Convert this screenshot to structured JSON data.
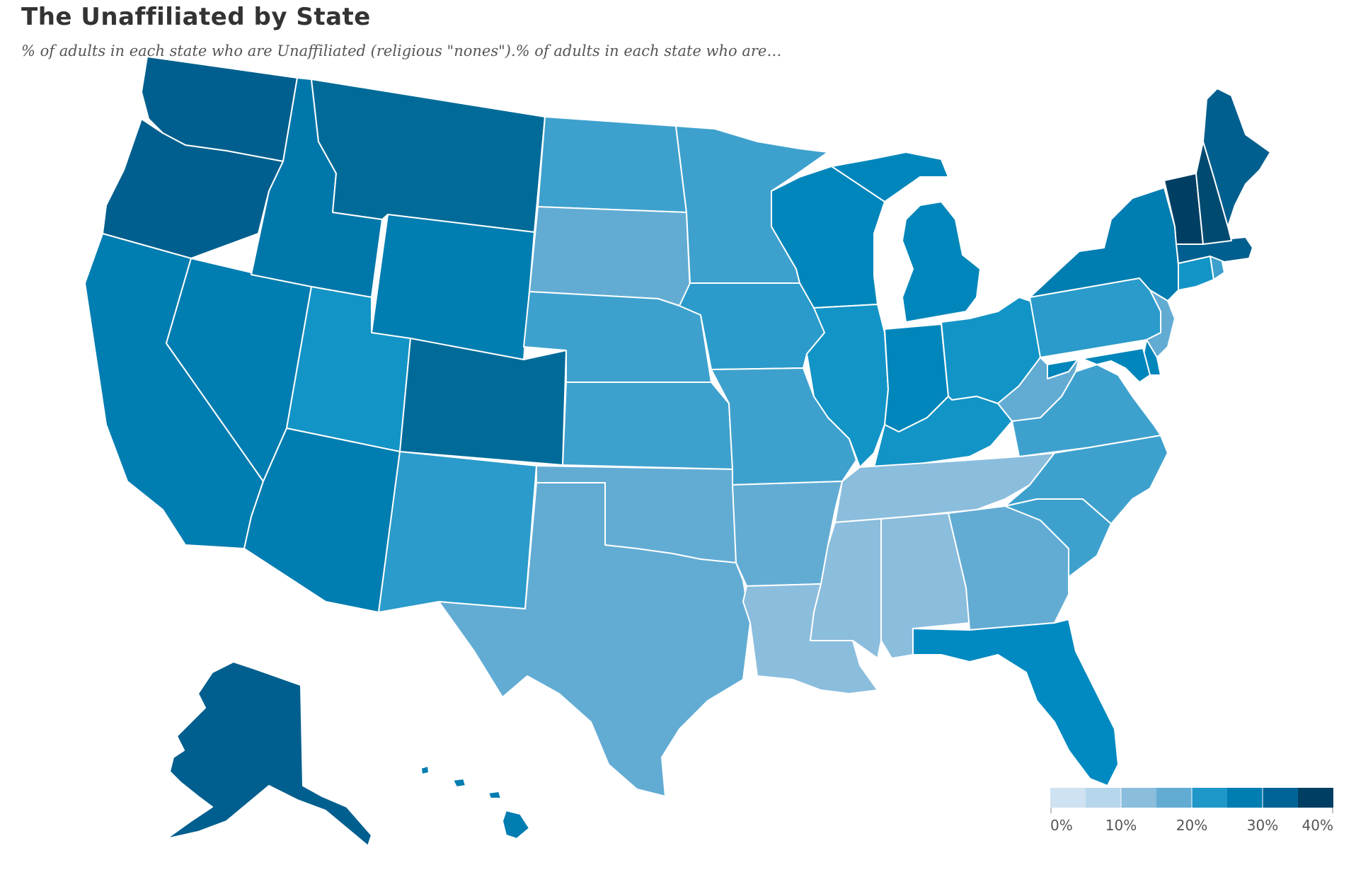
{
  "title": "The Unaffiliated by State",
  "subtitle": "% of adults in each state who are Unaffiliated (religious \"nones\").% of adults in each state who are…",
  "color_scale": [
    "#cfe2f1",
    "#a9d0ea",
    "#8bbddd",
    "#62acd4",
    "#3ea1cd",
    "#2a9bca",
    "#1394c6",
    "#008ac1",
    "#007db1",
    "#006a98",
    "#005a84",
    "#003f63"
  ],
  "legend": {
    "bins": [
      {
        "min": 0,
        "max": 5,
        "color": "#cfe2f1"
      },
      {
        "min": 5,
        "max": 10,
        "color": "#b6d6ec"
      },
      {
        "min": 10,
        "max": 15,
        "color": "#8bbddd"
      },
      {
        "min": 15,
        "max": 20,
        "color": "#62acd4"
      },
      {
        "min": 20,
        "max": 25,
        "color": "#1f97c8"
      },
      {
        "min": 25,
        "max": 30,
        "color": "#007db1"
      },
      {
        "min": 30,
        "max": 35,
        "color": "#006596"
      },
      {
        "min": 35,
        "max": 40,
        "color": "#003f63"
      }
    ],
    "ticks": [
      "0%",
      "10%",
      "20%",
      "30%",
      "40%"
    ]
  },
  "states": [
    {
      "name": "Washington",
      "color": "#005f8e"
    },
    {
      "name": "Oregon",
      "color": "#005f8e"
    },
    {
      "name": "California",
      "color": "#007db1"
    },
    {
      "name": "Nevada",
      "color": "#007db1"
    },
    {
      "name": "Idaho",
      "color": "#0077aa"
    },
    {
      "name": "Montana",
      "color": "#006b99"
    },
    {
      "name": "Wyoming",
      "color": "#007db1"
    },
    {
      "name": "Utah",
      "color": "#1394c6"
    },
    {
      "name": "Arizona",
      "color": "#007db1"
    },
    {
      "name": "Colorado",
      "color": "#006b99"
    },
    {
      "name": "New Mexico",
      "color": "#2a9bca"
    },
    {
      "name": "North Dakota",
      "color": "#3ea1cd"
    },
    {
      "name": "South Dakota",
      "color": "#62acd4"
    },
    {
      "name": "Nebraska",
      "color": "#3ea1cd"
    },
    {
      "name": "Kansas",
      "color": "#3ea1cd"
    },
    {
      "name": "Oklahoma",
      "color": "#62acd4"
    },
    {
      "name": "Texas",
      "color": "#62acd4"
    },
    {
      "name": "Minnesota",
      "color": "#3ea1cd"
    },
    {
      "name": "Iowa",
      "color": "#2a9bca"
    },
    {
      "name": "Missouri",
      "color": "#3ea1cd"
    },
    {
      "name": "Arkansas",
      "color": "#62acd4"
    },
    {
      "name": "Louisiana",
      "color": "#8bbddd"
    },
    {
      "name": "Wisconsin",
      "color": "#0086ba"
    },
    {
      "name": "Illinois",
      "color": "#1394c6"
    },
    {
      "name": "Michigan",
      "color": "#0086ba"
    },
    {
      "name": "Indiana",
      "color": "#0086ba"
    },
    {
      "name": "Ohio",
      "color": "#1394c6"
    },
    {
      "name": "Kentucky",
      "color": "#1394c6"
    },
    {
      "name": "Tennessee",
      "color": "#8bbddd"
    },
    {
      "name": "Mississippi",
      "color": "#8bbddd"
    },
    {
      "name": "Alabama",
      "color": "#8bbddd"
    },
    {
      "name": "Georgia",
      "color": "#62acd4"
    },
    {
      "name": "Florida",
      "color": "#008ac1"
    },
    {
      "name": "South Carolina",
      "color": "#3ea1cd"
    },
    {
      "name": "North Carolina",
      "color": "#3ea1cd"
    },
    {
      "name": "Virginia",
      "color": "#3ea1cd"
    },
    {
      "name": "West Virginia",
      "color": "#62acd4"
    },
    {
      "name": "Pennsylvania",
      "color": "#2a9bca"
    },
    {
      "name": "New York",
      "color": "#007db1"
    },
    {
      "name": "New Jersey",
      "color": "#62acd4"
    },
    {
      "name": "Delaware",
      "color": "#0086ba"
    },
    {
      "name": "Maryland",
      "color": "#0086ba"
    },
    {
      "name": "Connecticut",
      "color": "#1394c6"
    },
    {
      "name": "Rhode Island",
      "color": "#3ea1cd"
    },
    {
      "name": "Massachusetts",
      "color": "#005f8e"
    },
    {
      "name": "Vermont",
      "color": "#003f63"
    },
    {
      "name": "New Hampshire",
      "color": "#004a70"
    },
    {
      "name": "Maine",
      "color": "#005f8e"
    },
    {
      "name": "Alaska",
      "color": "#005f8e"
    },
    {
      "name": "Hawaii",
      "color": "#007db1"
    }
  ]
}
